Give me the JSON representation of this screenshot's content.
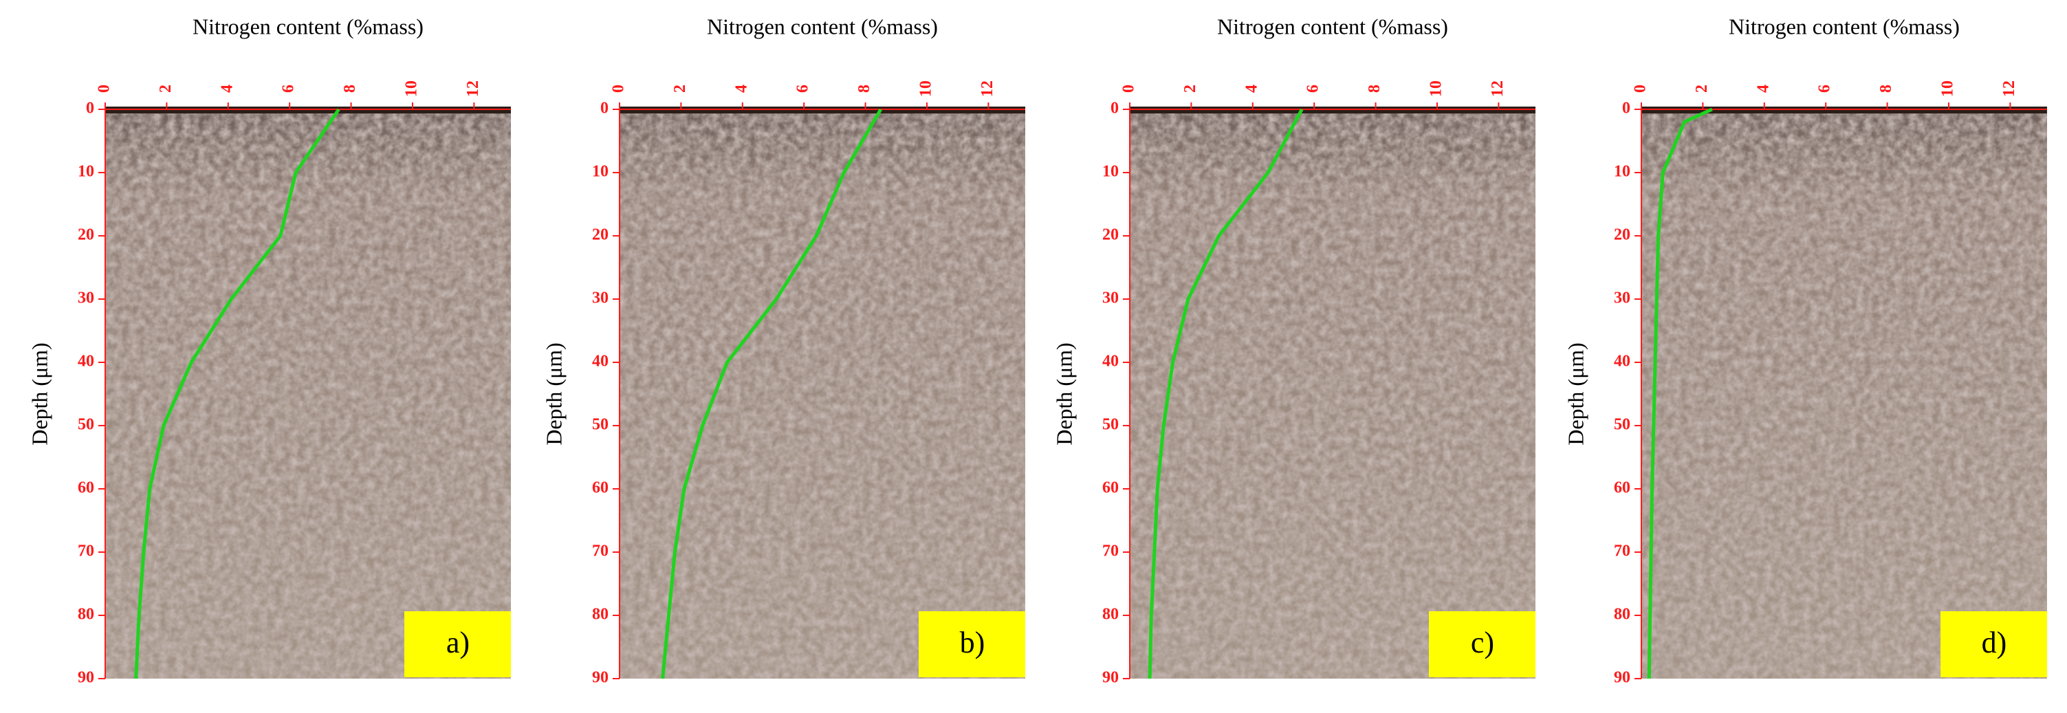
{
  "chart_data": [
    {
      "type": "line",
      "title": "Nitrogen content (%mass)",
      "y_label": "Depth (μm)",
      "label": "a)",
      "color": "#1fd41f",
      "xlim": [
        0,
        13.2
      ],
      "xticks": [
        0,
        2,
        4,
        6,
        8,
        10,
        12
      ],
      "ylim": [
        0,
        90
      ],
      "yticks": [
        0,
        10,
        20,
        30,
        40,
        50,
        60,
        70,
        80,
        90
      ],
      "y_inverted": true,
      "y": [
        0,
        10,
        20,
        30,
        40,
        50,
        60,
        70,
        80,
        90
      ],
      "values": [
        7.6,
        6.2,
        5.7,
        4.1,
        2.8,
        1.9,
        1.45,
        1.25,
        1.1,
        1.0
      ]
    },
    {
      "type": "line",
      "title": "Nitrogen content (%mass)",
      "y_label": "Depth (μm)",
      "label": "b)",
      "color": "#1fd41f",
      "xlim": [
        0,
        13.2
      ],
      "xticks": [
        0,
        2,
        4,
        6,
        8,
        10,
        12
      ],
      "ylim": [
        0,
        90
      ],
      "yticks": [
        0,
        10,
        20,
        30,
        40,
        50,
        60,
        70,
        80,
        90
      ],
      "y_inverted": true,
      "y": [
        0,
        10,
        20,
        30,
        40,
        50,
        60,
        70,
        80,
        90
      ],
      "values": [
        8.5,
        7.3,
        6.4,
        5.1,
        3.5,
        2.7,
        2.1,
        1.8,
        1.6,
        1.4
      ]
    },
    {
      "type": "line",
      "title": "Nitrogen content (%mass)",
      "y_label": "Depth (μm)",
      "label": "c)",
      "color": "#1fd41f",
      "xlim": [
        0,
        13.2
      ],
      "xticks": [
        0,
        2,
        4,
        6,
        8,
        10,
        12
      ],
      "ylim": [
        0,
        90
      ],
      "yticks": [
        0,
        10,
        20,
        30,
        40,
        50,
        60,
        70,
        80,
        90
      ],
      "y_inverted": true,
      "y": [
        0,
        10,
        20,
        30,
        40,
        50,
        60,
        70,
        80,
        90
      ],
      "values": [
        5.6,
        4.5,
        2.9,
        1.9,
        1.4,
        1.1,
        0.9,
        0.8,
        0.7,
        0.65
      ]
    },
    {
      "type": "line",
      "title": "Nitrogen content (%mass)",
      "y_label": "Depth (μm)",
      "label": "d)",
      "color": "#1fd41f",
      "xlim": [
        0,
        13.2
      ],
      "xticks": [
        0,
        2,
        4,
        6,
        8,
        10,
        12
      ],
      "ylim": [
        0,
        90
      ],
      "yticks": [
        0,
        10,
        20,
        30,
        40,
        50,
        60,
        70,
        80,
        90
      ],
      "y_inverted": true,
      "y": [
        0,
        2,
        10,
        20,
        40,
        60,
        90
      ],
      "values": [
        2.3,
        1.4,
        0.7,
        0.55,
        0.45,
        0.35,
        0.25
      ]
    }
  ]
}
